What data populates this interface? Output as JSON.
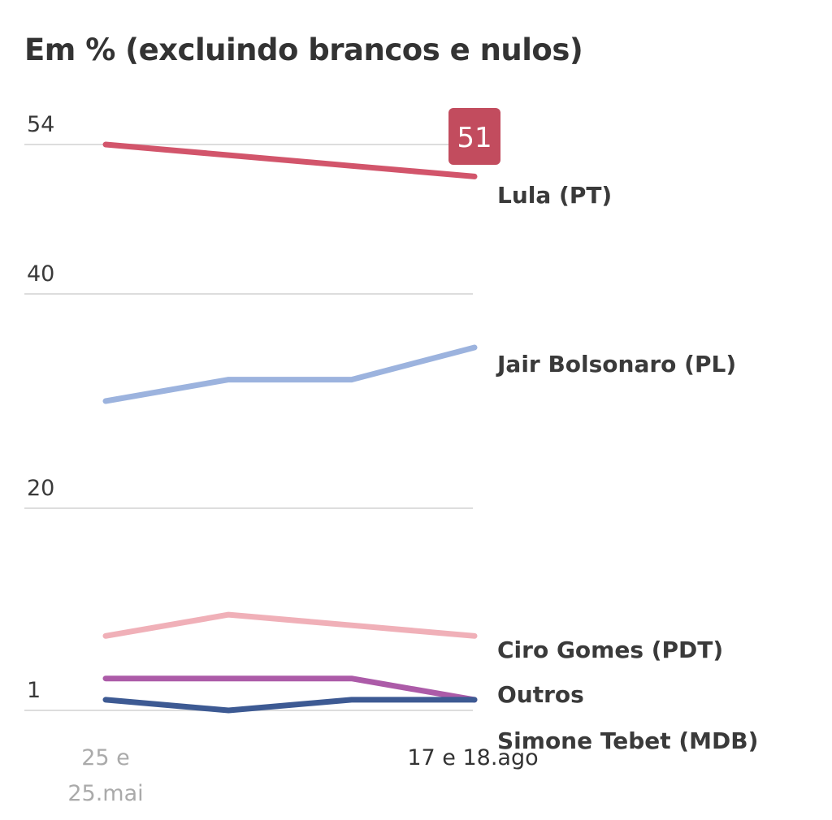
{
  "chart_data": {
    "type": "line",
    "title": "Em % (excluindo brancos e nulos)",
    "yticks": [
      54,
      40,
      20,
      1
    ],
    "ylim": [
      1,
      54
    ],
    "grid": true,
    "x_points": 4,
    "x_tick_labels": [
      {
        "index": 0,
        "lines": [
          "25 e",
          "25.mai"
        ],
        "color": "#aaaaaa"
      },
      {
        "index": 3,
        "lines": [
          "17 e 18.ago"
        ],
        "color": "#333333"
      }
    ],
    "series": [
      {
        "name": "Lula (PT)",
        "color": "#d2556b",
        "values": [
          54,
          53,
          52,
          51
        ],
        "badge": "51"
      },
      {
        "name": "Jair Bolsonaro (PL)",
        "color": "#9cb3de",
        "values": [
          30,
          32,
          32,
          35
        ]
      },
      {
        "name": "Ciro Gomes (PDT)",
        "color": "#f0b0b8",
        "values": [
          8,
          10,
          9,
          8
        ]
      },
      {
        "name": "Outros",
        "color": "#ac5ba8",
        "values": [
          4,
          4,
          4,
          2
        ]
      },
      {
        "name": "Simone Tebet (MDB)",
        "color": "#3d5a93",
        "values": [
          2,
          1,
          2,
          2
        ]
      }
    ]
  }
}
